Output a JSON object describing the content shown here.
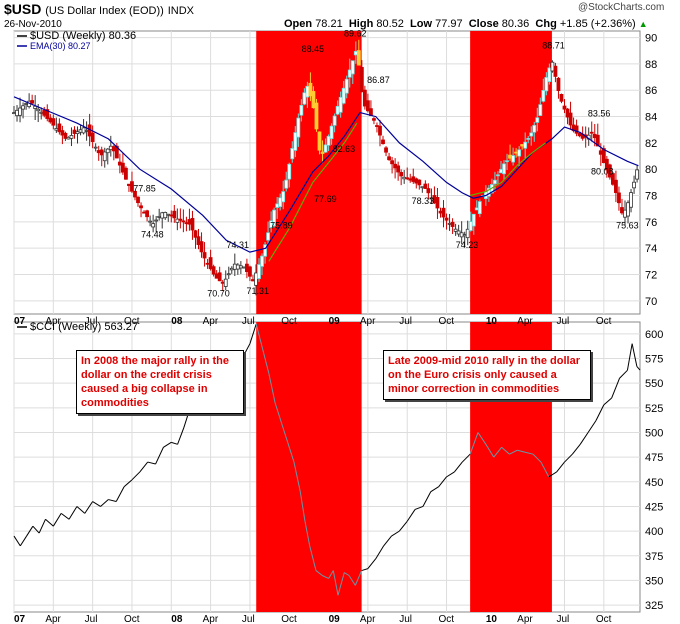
{
  "header": {
    "symbol": "$USD",
    "name": "(US Dollar Index (EOD))",
    "exchange": "INDX",
    "date": "26-Nov-2010",
    "open_label": "Open",
    "open": "78.21",
    "high_label": "High",
    "high": "80.52",
    "low_label": "Low",
    "low": "77.97",
    "close_label": "Close",
    "close": "80.36",
    "chg_label": "Chg",
    "chg": "+1.85 (+2.36%)",
    "watermark": "@StockCharts.com",
    "up_color": "#009900"
  },
  "colors": {
    "highlight": "#ff0000",
    "ema": "#000099",
    "ma": "#66aa00",
    "down_candle": "#cc0000",
    "up_candle": "#00aaaa",
    "line": "#000000",
    "annotation_text": "#ff0000"
  },
  "highlight_periods": [
    {
      "start": 2008.54,
      "end": 2009.21
    },
    {
      "start": 2009.9,
      "end": 2010.42
    }
  ],
  "annotations": [
    {
      "text": "In 2008 the major rally in the dollar on the credit crisis caused a big collapse in commodities"
    },
    {
      "text": "Late 2009-mid 2010 rally in the dollar on the Euro crisis only caused a minor correction in commodities"
    }
  ],
  "chart_data": [
    {
      "type": "candlestick",
      "legend": [
        {
          "label": "$USD (Weekly) 80.36",
          "color": "#000000"
        },
        {
          "label": "EMA(30) 80.27",
          "color": "#000099"
        }
      ],
      "ylim": [
        69,
        90.5
      ],
      "yticks": [
        70,
        72,
        74,
        76,
        78,
        80,
        82,
        84,
        86,
        88,
        90
      ],
      "xlim": [
        2007.0,
        2010.98
      ],
      "x_ticks": [
        {
          "x": 2007.0,
          "label": "07",
          "bold": true
        },
        {
          "x": 2007.25,
          "label": "Apr",
          "bold": false
        },
        {
          "x": 2007.5,
          "label": "Jul",
          "bold": false
        },
        {
          "x": 2007.75,
          "label": "Oct",
          "bold": false
        },
        {
          "x": 2008.0,
          "label": "08",
          "bold": true
        },
        {
          "x": 2008.25,
          "label": "Apr",
          "bold": false
        },
        {
          "x": 2008.5,
          "label": "Jul",
          "bold": false
        },
        {
          "x": 2008.75,
          "label": "Oct",
          "bold": false
        },
        {
          "x": 2009.0,
          "label": "09",
          "bold": true
        },
        {
          "x": 2009.25,
          "label": "Apr",
          "bold": false
        },
        {
          "x": 2009.5,
          "label": "Jul",
          "bold": false
        },
        {
          "x": 2009.75,
          "label": "Oct",
          "bold": false
        },
        {
          "x": 2010.0,
          "label": "10",
          "bold": true
        },
        {
          "x": 2010.25,
          "label": "Apr",
          "bold": false
        },
        {
          "x": 2010.5,
          "label": "Jul",
          "bold": false
        },
        {
          "x": 2010.75,
          "label": "Oct",
          "bold": false
        }
      ],
      "price_path": [
        [
          2007.0,
          84.3
        ],
        [
          2007.1,
          85.2
        ],
        [
          2007.2,
          84.0
        ],
        [
          2007.33,
          82.3
        ],
        [
          2007.45,
          83.2
        ],
        [
          2007.55,
          81.0
        ],
        [
          2007.62,
          81.8
        ],
        [
          2007.72,
          79.0
        ],
        [
          2007.8,
          77.2
        ],
        [
          2007.88,
          75.8
        ],
        [
          2007.95,
          76.8
        ],
        [
          2008.02,
          76.3
        ],
        [
          2008.12,
          75.8
        ],
        [
          2008.2,
          73.5
        ],
        [
          2008.28,
          71.8
        ],
        [
          2008.33,
          71.3
        ],
        [
          2008.4,
          72.8
        ],
        [
          2008.46,
          72.6
        ],
        [
          2008.52,
          71.5
        ],
        [
          2008.58,
          73.5
        ],
        [
          2008.65,
          76.8
        ],
        [
          2008.72,
          78.5
        ],
        [
          2008.8,
          83.5
        ],
        [
          2008.86,
          86.5
        ],
        [
          2008.9,
          85.0
        ],
        [
          2008.95,
          80.8
        ],
        [
          2009.0,
          82.5
        ],
        [
          2009.05,
          84.5
        ],
        [
          2009.12,
          87.0
        ],
        [
          2009.18,
          89.2
        ],
        [
          2009.22,
          85.0
        ],
        [
          2009.3,
          83.5
        ],
        [
          2009.38,
          80.8
        ],
        [
          2009.46,
          79.5
        ],
        [
          2009.55,
          79.0
        ],
        [
          2009.62,
          78.5
        ],
        [
          2009.72,
          76.5
        ],
        [
          2009.8,
          75.5
        ],
        [
          2009.87,
          75.0
        ],
        [
          2009.92,
          76.5
        ],
        [
          2009.98,
          78.0
        ],
        [
          2010.05,
          79.0
        ],
        [
          2010.12,
          80.5
        ],
        [
          2010.2,
          81.3
        ],
        [
          2010.28,
          82.5
        ],
        [
          2010.33,
          84.0
        ],
        [
          2010.38,
          86.8
        ],
        [
          2010.42,
          88.3
        ],
        [
          2010.47,
          85.5
        ],
        [
          2010.55,
          83.0
        ],
        [
          2010.62,
          82.3
        ],
        [
          2010.68,
          82.8
        ],
        [
          2010.75,
          80.5
        ],
        [
          2010.82,
          78.5
        ],
        [
          2010.87,
          76.5
        ],
        [
          2010.9,
          77.3
        ],
        [
          2010.94,
          78.9
        ],
        [
          2010.97,
          80.36
        ]
      ],
      "ema30": [
        [
          2007.0,
          85.5
        ],
        [
          2007.2,
          84.5
        ],
        [
          2007.4,
          83.5
        ],
        [
          2007.6,
          82.3
        ],
        [
          2007.8,
          80.0
        ],
        [
          2008.0,
          78.5
        ],
        [
          2008.2,
          76.5
        ],
        [
          2008.35,
          74.6
        ],
        [
          2008.5,
          73.7
        ],
        [
          2008.6,
          74.0
        ],
        [
          2008.75,
          76.8
        ],
        [
          2008.9,
          79.8
        ],
        [
          2009.0,
          81.0
        ],
        [
          2009.1,
          82.5
        ],
        [
          2009.2,
          84.3
        ],
        [
          2009.3,
          84.0
        ],
        [
          2009.45,
          82.0
        ],
        [
          2009.6,
          80.6
        ],
        [
          2009.75,
          79.0
        ],
        [
          2009.85,
          78.2
        ],
        [
          2009.92,
          77.8
        ],
        [
          2010.0,
          78.0
        ],
        [
          2010.1,
          78.7
        ],
        [
          2010.2,
          80.0
        ],
        [
          2010.3,
          81.3
        ],
        [
          2010.42,
          82.3
        ],
        [
          2010.5,
          83.2
        ],
        [
          2010.6,
          82.8
        ],
        [
          2010.75,
          81.5
        ],
        [
          2010.9,
          80.6
        ],
        [
          2010.97,
          80.27
        ]
      ],
      "ma_highlight": [
        [
          2008.62,
          73.0
        ],
        [
          2008.75,
          75.5
        ],
        [
          2008.9,
          79.0
        ],
        [
          2009.0,
          80.5
        ],
        [
          2009.1,
          82.0
        ],
        [
          2009.18,
          83.5
        ]
      ],
      "ma_highlight_2": [
        [
          2009.9,
          78.0
        ],
        [
          2010.0,
          78.3
        ],
        [
          2010.1,
          79.0
        ],
        [
          2010.2,
          80.3
        ],
        [
          2010.3,
          81.3
        ],
        [
          2010.38,
          82.0
        ]
      ],
      "price_labels": [
        {
          "x": 2007.83,
          "y": 77.85,
          "label": "77.85",
          "pos": "above"
        },
        {
          "x": 2007.88,
          "y": 75.8,
          "label": "74.48",
          "pos": "below"
        },
        {
          "x": 2008.3,
          "y": 71.3,
          "label": "70.70",
          "pos": "below"
        },
        {
          "x": 2008.52,
          "y": 74.31,
          "label": "74.31",
          "pos": "left"
        },
        {
          "x": 2008.55,
          "y": 71.5,
          "label": "71.31",
          "pos": "below"
        },
        {
          "x": 2008.7,
          "y": 76.5,
          "label": "75.89",
          "pos": "below"
        },
        {
          "x": 2008.9,
          "y": 88.45,
          "label": "88.45",
          "pos": "above"
        },
        {
          "x": 2009.0,
          "y": 81.6,
          "label": "82.63",
          "pos": "right"
        },
        {
          "x": 2008.98,
          "y": 78.5,
          "label": "77.69",
          "pos": "below"
        },
        {
          "x": 2009.17,
          "y": 89.62,
          "label": "89.62",
          "pos": "above"
        },
        {
          "x": 2009.22,
          "y": 86.87,
          "label": "86.87",
          "pos": "right"
        },
        {
          "x": 2009.6,
          "y": 78.33,
          "label": "78.33",
          "pos": "below"
        },
        {
          "x": 2009.88,
          "y": 75.0,
          "label": "74.23",
          "pos": "below"
        },
        {
          "x": 2010.43,
          "y": 88.71,
          "label": "88.71",
          "pos": "above"
        },
        {
          "x": 2010.72,
          "y": 83.56,
          "label": "83.56",
          "pos": "above"
        },
        {
          "x": 2010.74,
          "y": 80.6,
          "label": "80.08",
          "pos": "below"
        },
        {
          "x": 2010.9,
          "y": 76.5,
          "label": "75.63",
          "pos": "below"
        }
      ]
    },
    {
      "type": "line",
      "legend": [
        {
          "label": "$CCI (Weekly) 563.27",
          "color": "#000000"
        }
      ],
      "ylim": [
        318,
        612
      ],
      "yticks": [
        325,
        350,
        375,
        400,
        425,
        450,
        475,
        500,
        525,
        550,
        575,
        600
      ],
      "xlim": [
        2007.0,
        2010.98
      ],
      "x_ticks": [
        {
          "x": 2007.0,
          "label": "07",
          "bold": true
        },
        {
          "x": 2007.25,
          "label": "Apr",
          "bold": false
        },
        {
          "x": 2007.5,
          "label": "Jul",
          "bold": false
        },
        {
          "x": 2007.75,
          "label": "Oct",
          "bold": false
        },
        {
          "x": 2008.0,
          "label": "08",
          "bold": true
        },
        {
          "x": 2008.25,
          "label": "Apr",
          "bold": false
        },
        {
          "x": 2008.5,
          "label": "Jul",
          "bold": false
        },
        {
          "x": 2008.75,
          "label": "Oct",
          "bold": false
        },
        {
          "x": 2009.0,
          "label": "09",
          "bold": true
        },
        {
          "x": 2009.25,
          "label": "Apr",
          "bold": false
        },
        {
          "x": 2009.5,
          "label": "Jul",
          "bold": false
        },
        {
          "x": 2009.75,
          "label": "Oct",
          "bold": false
        },
        {
          "x": 2010.0,
          "label": "10",
          "bold": true
        },
        {
          "x": 2010.25,
          "label": "Apr",
          "bold": false
        },
        {
          "x": 2010.5,
          "label": "Jul",
          "bold": false
        },
        {
          "x": 2010.75,
          "label": "Oct",
          "bold": false
        }
      ],
      "points": [
        [
          2007.0,
          395
        ],
        [
          2007.04,
          385
        ],
        [
          2007.08,
          395
        ],
        [
          2007.12,
          405
        ],
        [
          2007.16,
          398
        ],
        [
          2007.2,
          412
        ],
        [
          2007.25,
          405
        ],
        [
          2007.3,
          418
        ],
        [
          2007.35,
          412
        ],
        [
          2007.4,
          425
        ],
        [
          2007.45,
          418
        ],
        [
          2007.5,
          430
        ],
        [
          2007.55,
          425
        ],
        [
          2007.6,
          432
        ],
        [
          2007.65,
          430
        ],
        [
          2007.7,
          445
        ],
        [
          2007.75,
          452
        ],
        [
          2007.8,
          460
        ],
        [
          2007.85,
          470
        ],
        [
          2007.9,
          468
        ],
        [
          2007.95,
          485
        ],
        [
          2008.0,
          490
        ],
        [
          2008.04,
          488
        ],
        [
          2008.08,
          505
        ],
        [
          2008.12,
          525
        ],
        [
          2008.16,
          540
        ],
        [
          2008.2,
          545
        ],
        [
          2008.25,
          530
        ],
        [
          2008.3,
          545
        ],
        [
          2008.35,
          560
        ],
        [
          2008.4,
          555
        ],
        [
          2008.45,
          575
        ],
        [
          2008.5,
          590
        ],
        [
          2008.54,
          610
        ],
        [
          2008.58,
          585
        ],
        [
          2008.62,
          560
        ],
        [
          2008.66,
          530
        ],
        [
          2008.7,
          510
        ],
        [
          2008.74,
          490
        ],
        [
          2008.78,
          470
        ],
        [
          2008.82,
          440
        ],
        [
          2008.85,
          410
        ],
        [
          2008.88,
          385
        ],
        [
          2008.92,
          360
        ],
        [
          2008.96,
          355
        ],
        [
          2009.0,
          352
        ],
        [
          2009.03,
          360
        ],
        [
          2009.06,
          335
        ],
        [
          2009.1,
          358
        ],
        [
          2009.13,
          355
        ],
        [
          2009.17,
          345
        ],
        [
          2009.21,
          360
        ],
        [
          2009.25,
          362
        ],
        [
          2009.3,
          372
        ],
        [
          2009.35,
          385
        ],
        [
          2009.4,
          395
        ],
        [
          2009.45,
          400
        ],
        [
          2009.5,
          410
        ],
        [
          2009.55,
          422
        ],
        [
          2009.6,
          425
        ],
        [
          2009.65,
          440
        ],
        [
          2009.7,
          445
        ],
        [
          2009.75,
          455
        ],
        [
          2009.8,
          460
        ],
        [
          2009.85,
          470
        ],
        [
          2009.9,
          478
        ],
        [
          2009.95,
          500
        ],
        [
          2010.0,
          488
        ],
        [
          2010.05,
          475
        ],
        [
          2010.1,
          485
        ],
        [
          2010.15,
          478
        ],
        [
          2010.2,
          482
        ],
        [
          2010.25,
          480
        ],
        [
          2010.3,
          478
        ],
        [
          2010.35,
          470
        ],
        [
          2010.4,
          455
        ],
        [
          2010.45,
          460
        ],
        [
          2010.5,
          470
        ],
        [
          2010.55,
          478
        ],
        [
          2010.6,
          488
        ],
        [
          2010.65,
          500
        ],
        [
          2010.7,
          512
        ],
        [
          2010.75,
          528
        ],
        [
          2010.8,
          535
        ],
        [
          2010.85,
          555
        ],
        [
          2010.9,
          563
        ],
        [
          2010.93,
          590
        ],
        [
          2010.96,
          567
        ],
        [
          2010.98,
          563.27
        ]
      ]
    }
  ]
}
